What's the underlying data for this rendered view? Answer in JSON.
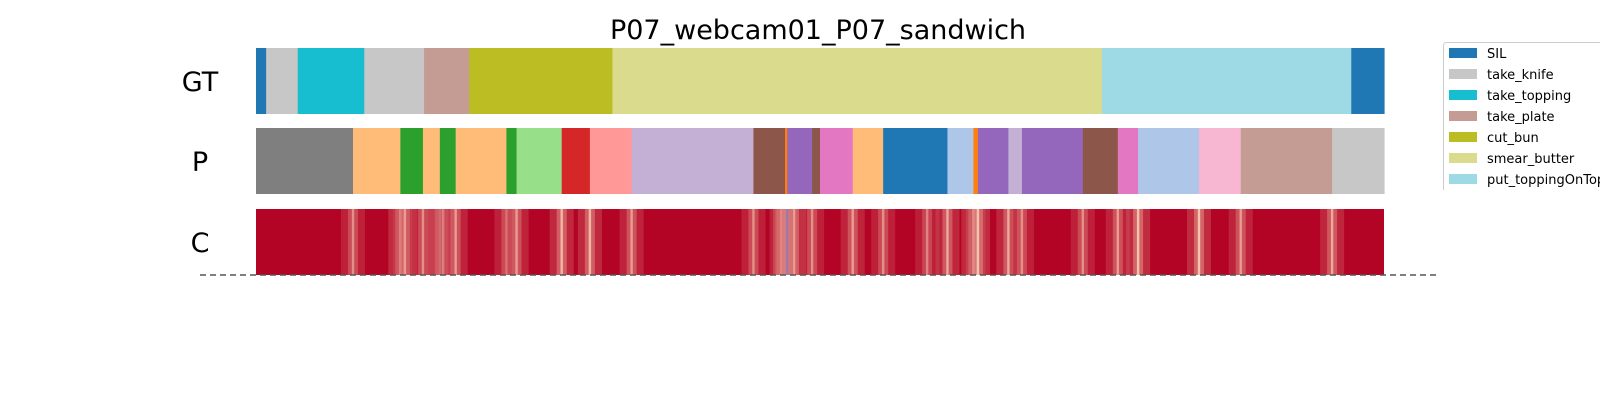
{
  "chart_data": {
    "type": "heatmap",
    "title": "P07_webcam01_P07_sandwich",
    "x_range": [
      0,
      1000
    ],
    "rows": [
      {
        "label": "GT",
        "segments": [
          {
            "start": 0,
            "end": 9,
            "action": "SIL"
          },
          {
            "start": 9,
            "end": 37,
            "action": "take_knife"
          },
          {
            "start": 37,
            "end": 96,
            "action": "take_topping"
          },
          {
            "start": 96,
            "end": 149,
            "action": "take_knife"
          },
          {
            "start": 149,
            "end": 189,
            "action": "take_plate"
          },
          {
            "start": 189,
            "end": 316,
            "action": "cut_bun"
          },
          {
            "start": 316,
            "end": 750,
            "action": "smear_butter"
          },
          {
            "start": 750,
            "end": 971,
            "action": "put_toppingOnTop"
          },
          {
            "start": 971,
            "end": 1000,
            "action": "SIL"
          }
        ]
      },
      {
        "label": "P",
        "segments": [
          {
            "start": 0,
            "end": 86,
            "color": "#7f7f7f"
          },
          {
            "start": 86,
            "end": 128,
            "color": "#ffbb78"
          },
          {
            "start": 128,
            "end": 148,
            "color": "#2ca02c"
          },
          {
            "start": 148,
            "end": 163,
            "color": "#ffbb78"
          },
          {
            "start": 163,
            "end": 177,
            "color": "#2ca02c"
          },
          {
            "start": 177,
            "end": 222,
            "color": "#ffbb78"
          },
          {
            "start": 222,
            "end": 231,
            "color": "#2ca02c"
          },
          {
            "start": 231,
            "end": 271,
            "color": "#98df8a"
          },
          {
            "start": 271,
            "end": 296,
            "color": "#d62728"
          },
          {
            "start": 296,
            "end": 333,
            "color": "#ff9896"
          },
          {
            "start": 333,
            "end": 441,
            "color": "#c5b0d5"
          },
          {
            "start": 441,
            "end": 469,
            "color": "#8c564b"
          },
          {
            "start": 469,
            "end": 471,
            "color": "#ff7f0e"
          },
          {
            "start": 471,
            "end": 493,
            "color": "#9467bd"
          },
          {
            "start": 493,
            "end": 500,
            "color": "#8c564b"
          },
          {
            "start": 500,
            "end": 529,
            "color": "#e377c2"
          },
          {
            "start": 529,
            "end": 556,
            "color": "#ffbb78"
          },
          {
            "start": 556,
            "end": 613,
            "color": "#1f77b4"
          },
          {
            "start": 613,
            "end": 636,
            "color": "#aec7e8"
          },
          {
            "start": 636,
            "end": 640,
            "color": "#ff7f0e"
          },
          {
            "start": 640,
            "end": 667,
            "color": "#9467bd"
          },
          {
            "start": 667,
            "end": 679,
            "color": "#c5b0d5"
          },
          {
            "start": 679,
            "end": 733,
            "color": "#9467bd"
          },
          {
            "start": 733,
            "end": 764,
            "color": "#8c564b"
          },
          {
            "start": 764,
            "end": 782,
            "color": "#e377c2"
          },
          {
            "start": 782,
            "end": 836,
            "color": "#aec7e8"
          },
          {
            "start": 836,
            "end": 873,
            "color": "#f7b6d2"
          },
          {
            "start": 873,
            "end": 954,
            "color": "#c49c94"
          },
          {
            "start": 954,
            "end": 1000,
            "color": "#c7c7c7"
          }
        ]
      },
      {
        "label": "C",
        "base_color": "#b40426",
        "boundaries": [
          {
            "x": 86,
            "level": 0.55
          },
          {
            "x": 128,
            "level": 0.75
          },
          {
            "x": 132,
            "level": 0.6
          },
          {
            "x": 148,
            "level": 0.55
          },
          {
            "x": 163,
            "level": 0.85
          },
          {
            "x": 166,
            "level": 0.5
          },
          {
            "x": 177,
            "level": 0.6
          },
          {
            "x": 222,
            "level": 0.55
          },
          {
            "x": 231,
            "level": 0.6
          },
          {
            "x": 271,
            "level": 0.7
          },
          {
            "x": 296,
            "level": 0.7
          },
          {
            "x": 333,
            "level": 0.6
          },
          {
            "x": 441,
            "level": 0.55
          },
          {
            "x": 466,
            "level": 0.6
          },
          {
            "x": 469,
            "level": 0.9
          },
          {
            "x": 471,
            "level": 1.0
          },
          {
            "x": 477,
            "level": 0.6
          },
          {
            "x": 493,
            "level": 0.55
          },
          {
            "x": 529,
            "level": 0.6
          },
          {
            "x": 556,
            "level": 0.55
          },
          {
            "x": 595,
            "level": 0.5
          },
          {
            "x": 613,
            "level": 0.65
          },
          {
            "x": 636,
            "level": 0.7
          },
          {
            "x": 640,
            "level": 0.75
          },
          {
            "x": 667,
            "level": 0.65
          },
          {
            "x": 679,
            "level": 0.55
          },
          {
            "x": 733,
            "level": 0.55
          },
          {
            "x": 764,
            "level": 0.6
          },
          {
            "x": 782,
            "level": 0.75
          },
          {
            "x": 836,
            "level": 0.75
          },
          {
            "x": 873,
            "level": 0.6
          },
          {
            "x": 954,
            "level": 0.65
          }
        ]
      }
    ],
    "legend": {
      "position": "top-right",
      "entries": [
        {
          "label": "SIL",
          "color": "#1f77b4"
        },
        {
          "label": "take_knife",
          "color": "#c7c7c7"
        },
        {
          "label": "take_topping",
          "color": "#17becf"
        },
        {
          "label": "take_plate",
          "color": "#c49c94"
        },
        {
          "label": "cut_bun",
          "color": "#bcbd22"
        },
        {
          "label": "smear_butter",
          "color": "#dbdb8d"
        },
        {
          "label": "put_toppingOnTop",
          "color": "#9edae5"
        }
      ]
    },
    "dashed_baseline": true,
    "grid": false
  }
}
